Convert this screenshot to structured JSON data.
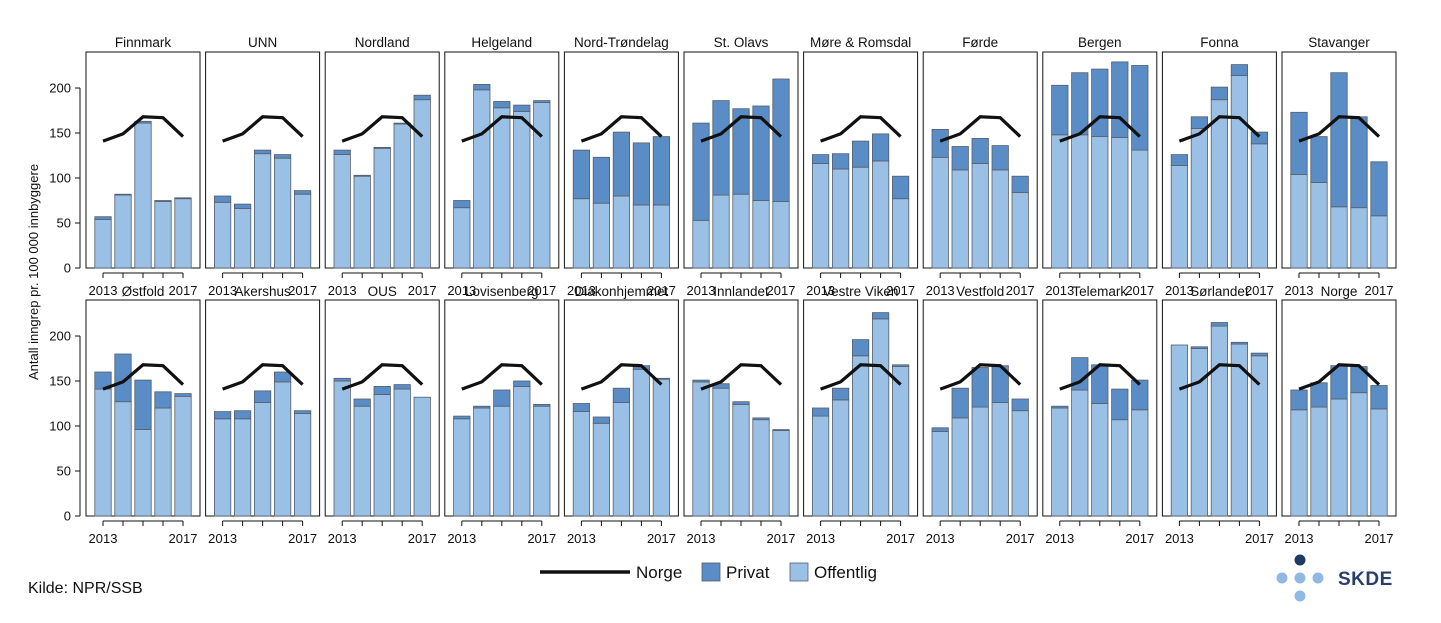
{
  "chart_data": {
    "type": "bar",
    "subtype": "small-multiples stacked bar with reference line",
    "ylabel": "Antall inngrep pr. 100 000 innbyggere",
    "ylim": [
      0,
      240
    ],
    "yticks": [
      0,
      50,
      100,
      150,
      200
    ],
    "years": [
      2013,
      2014,
      2015,
      2016,
      2017
    ],
    "xtick_labels": [
      "2013",
      "2017"
    ],
    "grid": false,
    "legend": {
      "placement": "bottom-center",
      "items": [
        {
          "key": "norge",
          "label": "Norge",
          "kind": "line"
        },
        {
          "key": "privat",
          "label": "Privat",
          "kind": "bar"
        },
        {
          "key": "offentlig",
          "label": "Offentlig",
          "kind": "bar"
        }
      ]
    },
    "colors": {
      "privat": "#5a8cc6",
      "offentlig": "#9bc0e6",
      "norge": "#111111",
      "edge": "#555e6b"
    },
    "norge_line": [
      141,
      149,
      168,
      167,
      146
    ],
    "panels": [
      {
        "name": "Finnmark",
        "offentlig": [
          54,
          81,
          161,
          74,
          77
        ],
        "privat": [
          3,
          1,
          2,
          1,
          1
        ]
      },
      {
        "name": "UNN",
        "offentlig": [
          73,
          66,
          127,
          122,
          82
        ],
        "privat": [
          7,
          5,
          4,
          4,
          4
        ]
      },
      {
        "name": "Nordland",
        "offentlig": [
          126,
          102,
          133,
          160,
          187
        ],
        "privat": [
          5,
          1,
          1,
          1,
          5
        ]
      },
      {
        "name": "Helgeland",
        "offentlig": [
          67,
          198,
          178,
          174,
          184
        ],
        "privat": [
          8,
          6,
          7,
          7,
          2
        ]
      },
      {
        "name": "Nord-Trøndelag",
        "offentlig": [
          77,
          72,
          80,
          70,
          70
        ],
        "privat": [
          54,
          51,
          71,
          69,
          76
        ]
      },
      {
        "name": "St. Olavs",
        "offentlig": [
          53,
          81,
          82,
          75,
          74
        ],
        "privat": [
          108,
          105,
          95,
          105,
          136
        ]
      },
      {
        "name": "Møre & Romsdal",
        "offentlig": [
          116,
          110,
          112,
          119,
          77
        ],
        "privat": [
          10,
          17,
          29,
          30,
          25
        ]
      },
      {
        "name": "Førde",
        "offentlig": [
          123,
          109,
          116,
          109,
          84
        ],
        "privat": [
          31,
          26,
          28,
          27,
          18
        ]
      },
      {
        "name": "Bergen",
        "offentlig": [
          148,
          148,
          146,
          145,
          131
        ],
        "privat": [
          55,
          69,
          75,
          84,
          94
        ]
      },
      {
        "name": "Fonna",
        "offentlig": [
          114,
          155,
          187,
          214,
          138
        ],
        "privat": [
          12,
          13,
          14,
          12,
          13
        ]
      },
      {
        "name": "Stavanger",
        "offentlig": [
          104,
          95,
          68,
          67,
          58
        ],
        "privat": [
          69,
          51,
          149,
          101,
          60
        ]
      },
      {
        "name": "Østfold",
        "offentlig": [
          141,
          127,
          96,
          120,
          133
        ],
        "privat": [
          19,
          53,
          55,
          18,
          3
        ]
      },
      {
        "name": "Akershus",
        "offentlig": [
          108,
          108,
          126,
          149,
          114
        ],
        "privat": [
          8,
          9,
          13,
          11,
          3
        ]
      },
      {
        "name": "OUS",
        "offentlig": [
          150,
          122,
          135,
          141,
          132
        ],
        "privat": [
          3,
          8,
          9,
          5,
          0
        ]
      },
      {
        "name": "Lovisenberg",
        "offentlig": [
          108,
          120,
          122,
          144,
          122
        ],
        "privat": [
          3,
          2,
          18,
          6,
          2
        ]
      },
      {
        "name": "Diakonhjemmet",
        "offentlig": [
          116,
          103,
          126,
          163,
          152
        ],
        "privat": [
          9,
          7,
          16,
          4,
          1
        ]
      },
      {
        "name": "Innlandet",
        "offentlig": [
          149,
          142,
          124,
          107,
          95
        ],
        "privat": [
          2,
          5,
          3,
          2,
          1
        ]
      },
      {
        "name": "Vestre Viken",
        "offentlig": [
          111,
          129,
          178,
          219,
          166
        ],
        "privat": [
          9,
          13,
          18,
          7,
          2
        ]
      },
      {
        "name": "Vestfold",
        "offentlig": [
          94,
          109,
          121,
          126,
          117
        ],
        "privat": [
          4,
          33,
          44,
          41,
          13
        ]
      },
      {
        "name": "Telemark",
        "offentlig": [
          120,
          140,
          125,
          107,
          118
        ],
        "privat": [
          2,
          36,
          43,
          34,
          33
        ]
      },
      {
        "name": "Sørlandet",
        "offentlig": [
          190,
          186,
          211,
          191,
          178
        ],
        "privat": [
          0,
          2,
          4,
          2,
          3
        ]
      },
      {
        "name": "Norge",
        "offentlig": [
          118,
          121,
          130,
          137,
          119
        ],
        "privat": [
          22,
          27,
          37,
          29,
          26
        ]
      }
    ]
  },
  "source": "Kilde: NPR/SSB",
  "logo": {
    "text": "SKDE",
    "dot_color": "#8fb8e2",
    "top_dot_color": "#1f3a66"
  }
}
